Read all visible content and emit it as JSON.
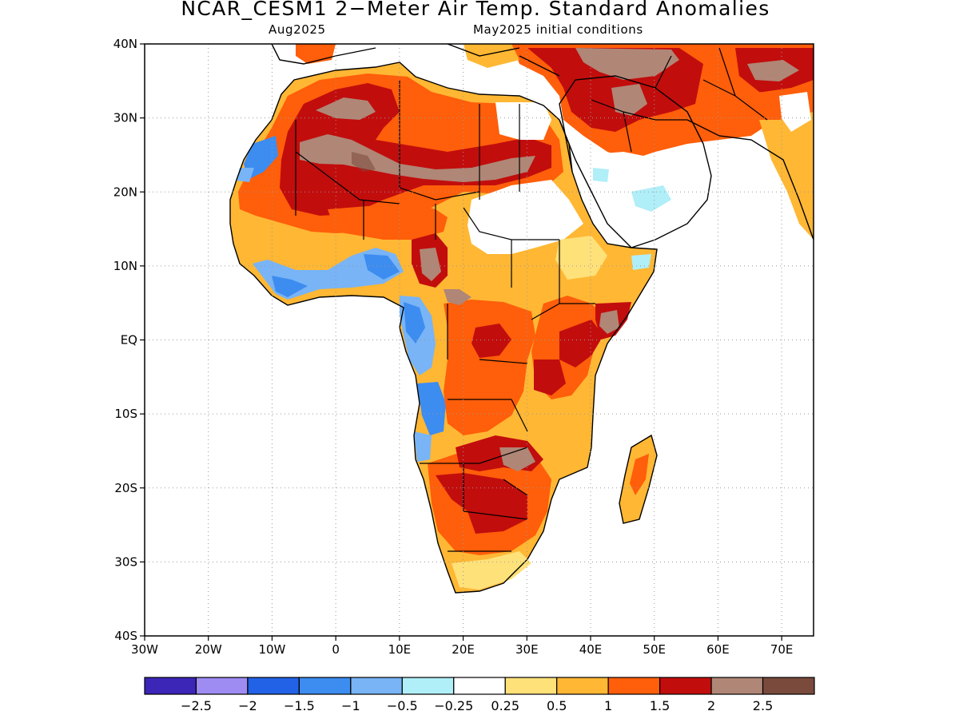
{
  "header": {
    "title": "NCAR_CESM1 2−Meter Air Temp. Standard Anomalies",
    "valid_month": "Aug2025",
    "init": "May2025 initial conditions"
  },
  "axes": {
    "lat_labels": [
      "40N",
      "30N",
      "20N",
      "10N",
      "EQ",
      "10S",
      "20S",
      "30S",
      "40S"
    ],
    "lon_labels": [
      "30W",
      "20W",
      "10W",
      "0",
      "10E",
      "20E",
      "30E",
      "40E",
      "50E",
      "60E",
      "70E"
    ],
    "lat_range": [
      -40,
      40
    ],
    "lon_range": [
      -30,
      75
    ],
    "grid": "dotted"
  },
  "colorbar": {
    "colors": [
      "#3b26b8",
      "#9f8cf2",
      "#2262e6",
      "#3d8cf0",
      "#78b4f6",
      "#b0eef8",
      "#ffffff",
      "#ffe17a",
      "#ffb734",
      "#ff5e0a",
      "#c20d0d",
      "#b08676",
      "#7a4a3c"
    ],
    "labels": [
      "−2.5",
      "−2",
      "−1.5",
      "−1",
      "−0.5",
      "−0.25",
      "0.25",
      "0.5",
      "1",
      "1.5",
      "2",
      "2.5"
    ]
  },
  "field": {
    "units": "standard anomaly",
    "summary_regions": [
      {
        "region": "Sahara / central Sahel band (20-26N)",
        "anomaly": 2.5
      },
      {
        "region": "North Africa coastal Algeria-Libya",
        "anomaly": 1.5
      },
      {
        "region": "Western Sahara / Mauritania coast",
        "anomaly": -1.0
      },
      {
        "region": "Gulf of Guinea coast",
        "anomaly": -1.0
      },
      {
        "region": "Gabon / Congo coast",
        "anomaly": -1.0
      },
      {
        "region": "Angola coast",
        "anomaly": -1.5
      },
      {
        "region": "Central Africa (DRC)",
        "anomaly": 1.5
      },
      {
        "region": "Sudan / South Sudan",
        "anomaly": 0.0
      },
      {
        "region": "Ethiopian Highlands",
        "anomaly": 0.5
      },
      {
        "region": "Somalia / Kenya east coast",
        "anomaly": 2.0
      },
      {
        "region": "Zambia / Zimbabwe",
        "anomaly": 2.5
      },
      {
        "region": "Botswana / Namibia",
        "anomaly": 2.0
      },
      {
        "region": "South Africa south coast",
        "anomaly": 0.5
      },
      {
        "region": "Madagascar",
        "anomaly": 1.0
      },
      {
        "region": "Iraq / Iran",
        "anomaly": 2.5
      },
      {
        "region": "Arabian Peninsula interior",
        "anomaly": 0.0
      },
      {
        "region": "Lake Chad / Cameroon",
        "anomaly": 2.5
      }
    ]
  }
}
